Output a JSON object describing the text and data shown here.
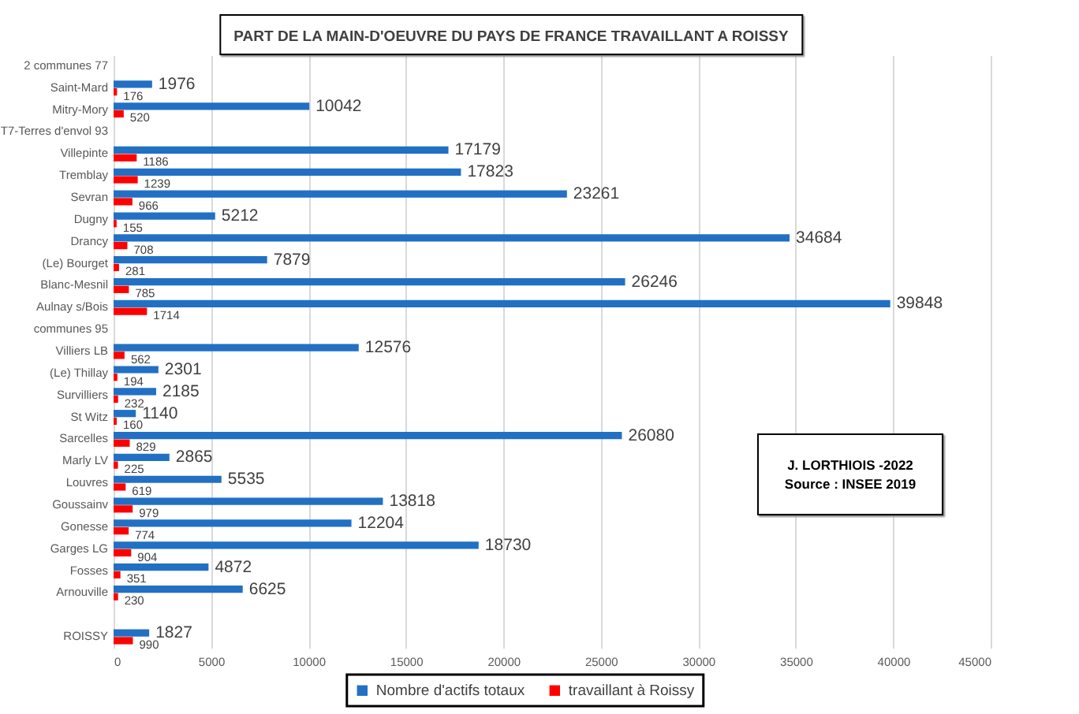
{
  "chart_data": {
    "type": "bar",
    "orientation": "horizontal",
    "title": "PART DE LA MAIN-D'OEUVRE DU PAYS DE FRANCE TRAVAILLANT A ROISSY",
    "categories": [
      "2 communes 77",
      "Saint-Mard",
      "Mitry-Mory",
      "T7-Terres d'envol 93",
      "Villepinte",
      "Tremblay",
      "Sevran",
      "Dugny",
      "Drancy",
      "(Le) Bourget",
      "Blanc-Mesnil",
      "Aulnay s/Bois",
      "communes 95",
      "Villiers LB",
      "(Le) Thillay",
      "Survilliers",
      "St Witz",
      "Sarcelles",
      "Marly LV",
      "Louvres",
      "Goussainv",
      "Gonesse",
      "Garges LG",
      "Fosses",
      "Arnouville",
      null,
      "ROISSY"
    ],
    "series": [
      {
        "name": "Nombre d'actifs totaux",
        "color": "#2170c4",
        "values": [
          null,
          1976,
          10042,
          null,
          17179,
          17823,
          23261,
          5212,
          34684,
          7879,
          26246,
          39848,
          null,
          12576,
          2301,
          2185,
          1140,
          26080,
          2865,
          5535,
          13818,
          12204,
          18730,
          4872,
          6625,
          null,
          1827
        ]
      },
      {
        "name": "travaillant à Roissy",
        "color": "#ff0000",
        "values": [
          null,
          176,
          520,
          null,
          1186,
          1239,
          966,
          155,
          708,
          281,
          785,
          1714,
          null,
          562,
          194,
          232,
          160,
          829,
          225,
          619,
          979,
          774,
          904,
          351,
          230,
          null,
          990
        ]
      }
    ],
    "xlim": [
      0,
      45000
    ],
    "xticks": [
      0,
      5000,
      10000,
      15000,
      20000,
      25000,
      30000,
      35000,
      40000,
      45000
    ],
    "grid": "x",
    "legend": "bottom",
    "data_labels": true,
    "annotations": [
      "J. LORTHIOIS -2022",
      "Source : INSEE 2019"
    ]
  }
}
